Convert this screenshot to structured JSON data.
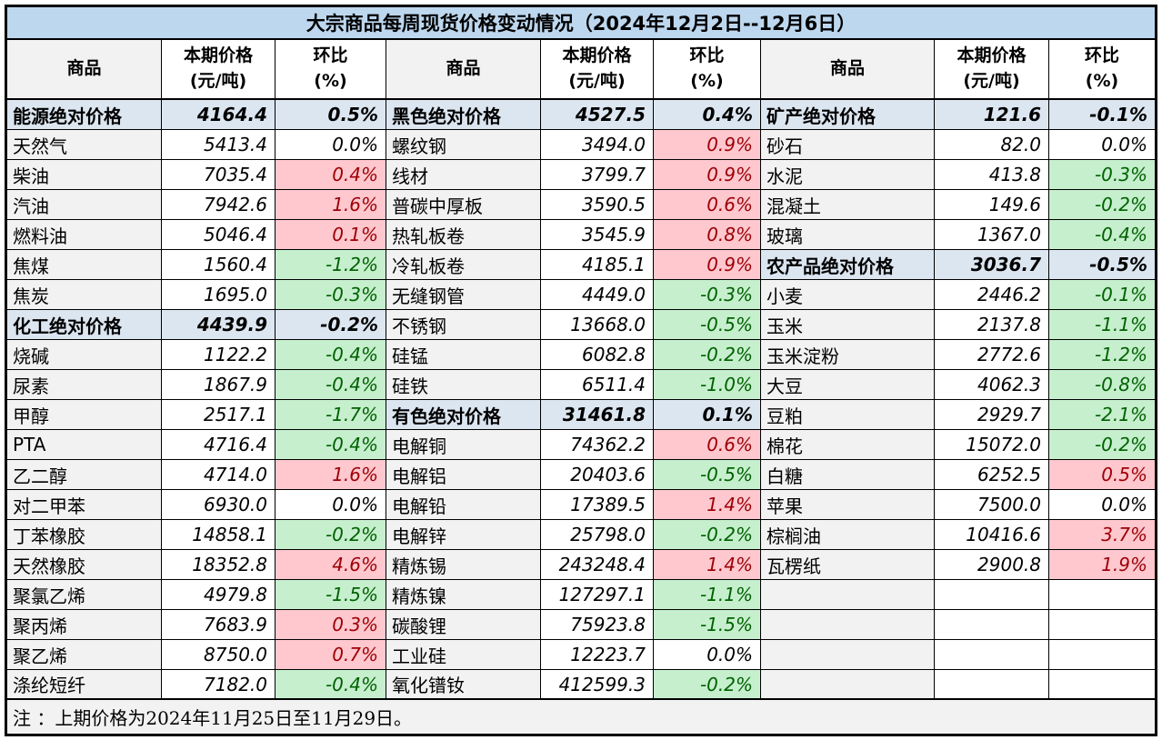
{
  "title": "大宗商品每周现货价格变动情况（2024年12月2日--12月6日）",
  "note": "注 ：上期价格为2024年11月25日至11月29日。",
  "header": {
    "commodity": "商品",
    "price_line1": "本期价格",
    "price_line2": "(元/吨)",
    "pct_line1": "环比",
    "pct_line2": "(%)"
  },
  "colors": {
    "title_bg": "#BDD7EE",
    "section_bg": "#DCE6F1",
    "name_bg": "#F2F2F2",
    "up_bg": "#FFC7CE",
    "up_text": "#9C0006",
    "down_bg": "#C6EFCE",
    "down_text": "#006100",
    "border": "#000000"
  },
  "groups": [
    {
      "rows": [
        {
          "type": "section",
          "name": "能源绝对价格",
          "price": "4164.4",
          "pct": "0.5%"
        },
        {
          "type": "zero",
          "name": "天然气",
          "price": "5413.4",
          "pct": "0.0%"
        },
        {
          "type": "up",
          "name": "柴油",
          "price": "7035.4",
          "pct": "0.4%"
        },
        {
          "type": "up",
          "name": "汽油",
          "price": "7942.6",
          "pct": "1.6%"
        },
        {
          "type": "up",
          "name": "燃料油",
          "price": "5046.4",
          "pct": "0.1%"
        },
        {
          "type": "down",
          "name": "焦煤",
          "price": "1560.4",
          "pct": "-1.2%"
        },
        {
          "type": "down",
          "name": "焦炭",
          "price": "1695.0",
          "pct": "-0.3%"
        },
        {
          "type": "section",
          "name": "化工绝对价格",
          "price": "4439.9",
          "pct": "-0.2%"
        },
        {
          "type": "down",
          "name": "烧碱",
          "price": "1122.2",
          "pct": "-0.4%"
        },
        {
          "type": "down",
          "name": "尿素",
          "price": "1867.9",
          "pct": "-0.4%"
        },
        {
          "type": "down",
          "name": "甲醇",
          "price": "2517.1",
          "pct": "-1.7%"
        },
        {
          "type": "down",
          "name": "PTA",
          "price": "4716.4",
          "pct": "-0.4%"
        },
        {
          "type": "up",
          "name": "乙二醇",
          "price": "4714.0",
          "pct": "1.6%"
        },
        {
          "type": "zero",
          "name": "对二甲苯",
          "price": "6930.0",
          "pct": "0.0%"
        },
        {
          "type": "down",
          "name": "丁苯橡胶",
          "price": "14858.1",
          "pct": "-0.2%"
        },
        {
          "type": "up",
          "name": "天然橡胶",
          "price": "18352.8",
          "pct": "4.6%"
        },
        {
          "type": "down",
          "name": "聚氯乙烯",
          "price": "4979.8",
          "pct": "-1.5%"
        },
        {
          "type": "up",
          "name": "聚丙烯",
          "price": "7683.9",
          "pct": "0.3%"
        },
        {
          "type": "up",
          "name": "聚乙烯",
          "price": "8750.0",
          "pct": "0.7%"
        },
        {
          "type": "down",
          "name": "涤纶短纤",
          "price": "7182.0",
          "pct": "-0.4%"
        }
      ]
    },
    {
      "rows": [
        {
          "type": "section",
          "name": "黑色绝对价格",
          "price": "4527.5",
          "pct": "0.4%"
        },
        {
          "type": "up",
          "name": "螺纹钢",
          "price": "3494.0",
          "pct": "0.9%"
        },
        {
          "type": "up",
          "name": "线材",
          "price": "3799.7",
          "pct": "0.9%"
        },
        {
          "type": "up",
          "name": "普碳中厚板",
          "price": "3590.5",
          "pct": "0.6%"
        },
        {
          "type": "up",
          "name": "热轧板卷",
          "price": "3545.9",
          "pct": "0.8%"
        },
        {
          "type": "up",
          "name": "冷轧板卷",
          "price": "4185.1",
          "pct": "0.9%"
        },
        {
          "type": "down",
          "name": "无缝钢管",
          "price": "4449.0",
          "pct": "-0.3%"
        },
        {
          "type": "down",
          "name": "不锈钢",
          "price": "13668.0",
          "pct": "-0.5%"
        },
        {
          "type": "down",
          "name": "硅锰",
          "price": "6082.8",
          "pct": "-0.2%"
        },
        {
          "type": "down",
          "name": "硅铁",
          "price": "6511.4",
          "pct": "-1.0%"
        },
        {
          "type": "section",
          "name": "有色绝对价格",
          "price": "31461.8",
          "pct": "0.1%"
        },
        {
          "type": "up",
          "name": "电解铜",
          "price": "74362.2",
          "pct": "0.6%"
        },
        {
          "type": "down",
          "name": "电解铝",
          "price": "20403.6",
          "pct": "-0.5%"
        },
        {
          "type": "up",
          "name": "电解铅",
          "price": "17389.5",
          "pct": "1.4%"
        },
        {
          "type": "down",
          "name": "电解锌",
          "price": "25798.0",
          "pct": "-0.2%"
        },
        {
          "type": "up",
          "name": "精炼锡",
          "price": "243248.4",
          "pct": "1.4%"
        },
        {
          "type": "down",
          "name": "精炼镍",
          "price": "127297.1",
          "pct": "-1.1%"
        },
        {
          "type": "down",
          "name": "碳酸锂",
          "price": "75923.8",
          "pct": "-1.5%"
        },
        {
          "type": "zero",
          "name": "工业硅",
          "price": "12223.7",
          "pct": "0.0%"
        },
        {
          "type": "down",
          "name": "氧化镨钕",
          "price": "412599.3",
          "pct": "-0.2%"
        }
      ]
    },
    {
      "rows": [
        {
          "type": "section",
          "name": "矿产绝对价格",
          "price": "121.6",
          "pct": "-0.1%"
        },
        {
          "type": "zero",
          "name": "砂石",
          "price": "82.0",
          "pct": "0.0%"
        },
        {
          "type": "down",
          "name": "水泥",
          "price": "413.8",
          "pct": "-0.3%"
        },
        {
          "type": "down",
          "name": "混凝土",
          "price": "149.6",
          "pct": "-0.2%"
        },
        {
          "type": "down",
          "name": "玻璃",
          "price": "1367.0",
          "pct": "-0.4%"
        },
        {
          "type": "section",
          "name": "农产品绝对价格",
          "price": "3036.7",
          "pct": "-0.5%"
        },
        {
          "type": "down",
          "name": "小麦",
          "price": "2446.2",
          "pct": "-0.1%"
        },
        {
          "type": "down",
          "name": "玉米",
          "price": "2137.8",
          "pct": "-1.1%"
        },
        {
          "type": "down",
          "name": "玉米淀粉",
          "price": "2772.6",
          "pct": "-1.2%"
        },
        {
          "type": "down",
          "name": "大豆",
          "price": "4062.3",
          "pct": "-0.8%"
        },
        {
          "type": "down",
          "name": "豆粕",
          "price": "2929.7",
          "pct": "-2.1%"
        },
        {
          "type": "down",
          "name": "棉花",
          "price": "15072.0",
          "pct": "-0.2%"
        },
        {
          "type": "up",
          "name": "白糖",
          "price": "6252.5",
          "pct": "0.5%"
        },
        {
          "type": "zero",
          "name": "苹果",
          "price": "7500.0",
          "pct": "0.0%"
        },
        {
          "type": "up",
          "name": "棕榈油",
          "price": "10416.6",
          "pct": "3.7%"
        },
        {
          "type": "up",
          "name": "瓦楞纸",
          "price": "2900.8",
          "pct": "1.9%"
        },
        {
          "type": "empty",
          "name": "",
          "price": "",
          "pct": ""
        },
        {
          "type": "empty",
          "name": "",
          "price": "",
          "pct": ""
        },
        {
          "type": "empty",
          "name": "",
          "price": "",
          "pct": ""
        },
        {
          "type": "empty",
          "name": "",
          "price": "",
          "pct": ""
        }
      ]
    }
  ]
}
